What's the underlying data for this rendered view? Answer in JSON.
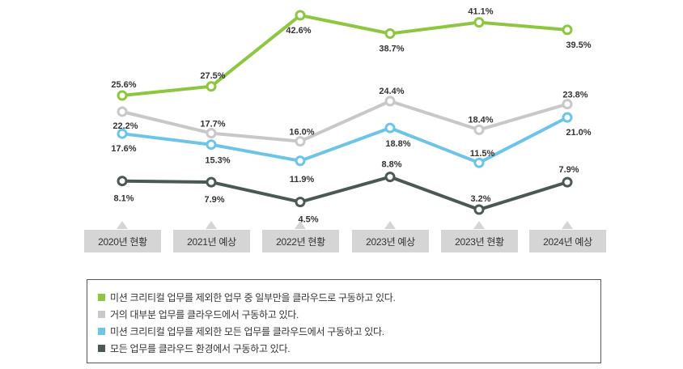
{
  "chart_data": {
    "type": "line",
    "categories": [
      "2020년 현황",
      "2021년 예상",
      "2022년 현황",
      "2023년 예상",
      "2023년 현황",
      "2024년 예상"
    ],
    "series": [
      {
        "name": "미션 크리티컬 업무를 제외한 업무 중 일부만을 클라우드로 구동하고 있다.",
        "color": "#8dc63f",
        "values": [
          25.6,
          27.5,
          42.6,
          38.7,
          41.1,
          39.5
        ],
        "labels": [
          "25.6%",
          "27.5%",
          "42.6%",
          "38.7%",
          "41.1%",
          "39.5%"
        ]
      },
      {
        "name": "거의 대부분 업무를 클라우드에서 구동하고 있다.",
        "color": "#c8c8c8",
        "values": [
          22.2,
          17.7,
          16.0,
          24.4,
          18.4,
          23.8
        ],
        "labels": [
          "22.2%",
          "17.7%",
          "16.0%",
          "24.4%",
          "18.4%",
          "23.8%"
        ]
      },
      {
        "name": "미션 크리티컬 업무를 제외한 모든 업무를 클라우드에서 구동하고 있다.",
        "color": "#6cc4e8",
        "values": [
          17.6,
          15.3,
          11.9,
          18.8,
          11.5,
          21.0
        ],
        "labels": [
          "17.6%",
          "15.3%",
          "11.9%",
          "18.8%",
          "11.5%",
          "21.0%"
        ]
      },
      {
        "name": "모든 업무를 클라우드 환경에서 구동하고 있다.",
        "color": "#4a5a52",
        "values": [
          8.1,
          7.9,
          4.5,
          8.8,
          3.2,
          7.9
        ],
        "labels": [
          "8.1%",
          "7.9%",
          "4.5%",
          "8.8%",
          "3.2%",
          "7.9%"
        ]
      }
    ],
    "title": "",
    "xlabel": "",
    "ylabel": "",
    "legend_position": "bottom",
    "grid": false
  }
}
